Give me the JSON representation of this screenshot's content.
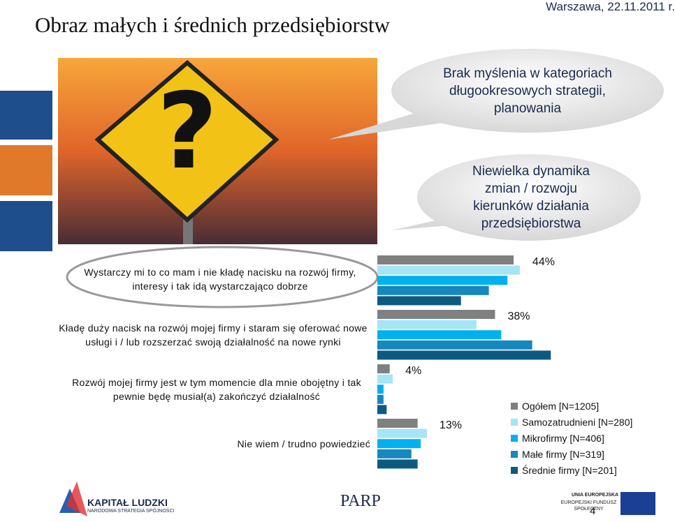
{
  "header": {
    "title": "Obraz małych i średnich przedsiębiorstw",
    "date": "Warszawa, 22.11.2011 r."
  },
  "callouts": [
    "Brak myślenia w kategoriach długookresowych strategii, planowania",
    "Niewielka dynamika zmian / rozwoju kierunków działania przedsiębiorstwa"
  ],
  "chart_data": {
    "type": "bar",
    "orientation": "horizontal",
    "categories": [
      "Wystarczy mi to co mam i nie kładę nacisku na rozwój firmy, interesy i tak idą wystarczająco dobrze",
      "Kładę duży nacisk na rozwój mojej firmy i staram się oferować nowe usługi i / lub rozszerzać swoją działalność na nowe rynki",
      "Rozwój mojej firmy jest w tym momencie dla mnie obojętny i tak pewnie będę musiał(a) zakończyć działalność",
      "Nie wiem / trudno powiedzieć"
    ],
    "series": [
      {
        "name": "Ogółem [N=1205]",
        "color": "#808080",
        "values": [
          44,
          38,
          4,
          13
        ],
        "value_labels": [
          "44%",
          "38%",
          "4%",
          "13%"
        ]
      },
      {
        "name": "Samozatrudnieni [N=280]",
        "color": "#a6e4f7",
        "values": [
          46,
          32,
          5,
          16
        ]
      },
      {
        "name": "Mikrofirmy [N=406]",
        "color": "#00b0f0",
        "values": [
          42,
          40,
          2,
          14
        ]
      },
      {
        "name": "Małe firmy [N=319]",
        "color": "#1687bf",
        "values": [
          36,
          50,
          2,
          11
        ]
      },
      {
        "name": "Średnie firmy [N=201]",
        "color": "#0c5a80",
        "values": [
          27,
          56,
          3,
          13
        ]
      }
    ],
    "xlim": [
      0,
      60
    ],
    "legend": "lower right"
  },
  "footer": {
    "kl_title": "KAPITAŁ LUDZKI",
    "kl_sub": "NARODOWA STRATEGIA SPÓJNOŚCI",
    "parp": "PARP",
    "ue_title": "UNIA EUROPEJSKA",
    "ue_sub": "EUROPEJSKI FUNDUSZ SPOŁECZNY",
    "page": "4"
  }
}
